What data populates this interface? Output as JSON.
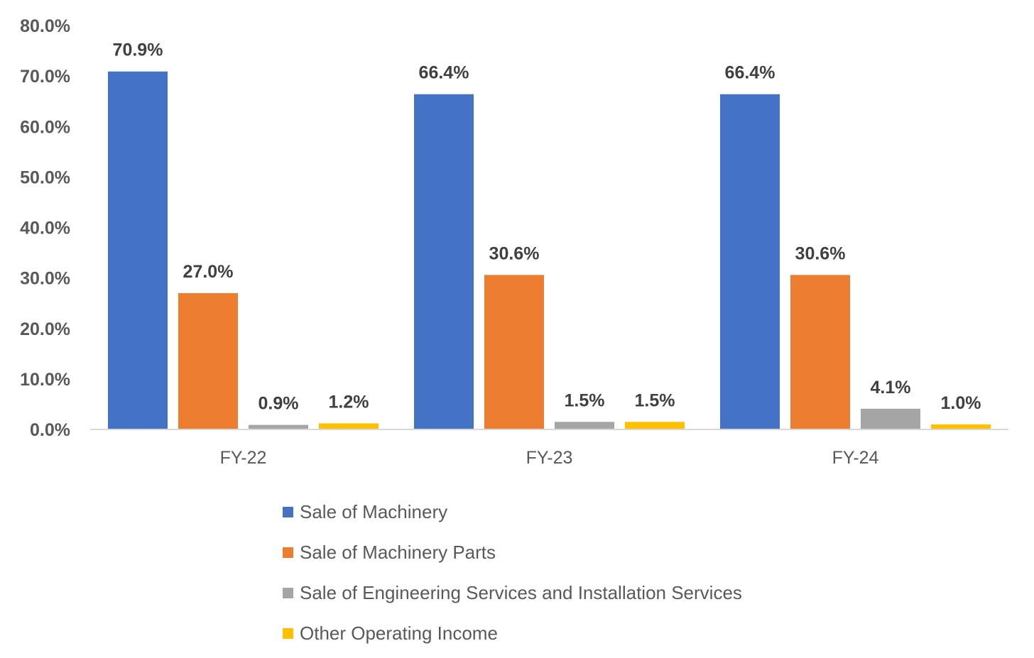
{
  "chart_data": {
    "type": "bar",
    "categories": [
      "FY-22",
      "FY-23",
      "FY-24"
    ],
    "series": [
      {
        "name": "Sale of Machinery",
        "color": "#4472C4",
        "values": [
          70.9,
          66.4,
          66.4
        ],
        "labels": [
          "70.9%",
          "66.4%",
          "66.4%"
        ]
      },
      {
        "name": "Sale of Machinery Parts",
        "color": "#ED7D31",
        "values": [
          27.0,
          30.6,
          30.6
        ],
        "labels": [
          "27.0%",
          "30.6%",
          "30.6%"
        ]
      },
      {
        "name": "Sale of Engineering Services and Installation Services",
        "color": "#A5A5A5",
        "values": [
          0.9,
          1.5,
          4.1
        ],
        "labels": [
          "0.9%",
          "1.5%",
          "4.1%"
        ]
      },
      {
        "name": "Other Operating Income",
        "color": "#FFC000",
        "values": [
          1.2,
          1.5,
          1.0
        ],
        "labels": [
          "1.2%",
          "1.5%",
          "1.0%"
        ]
      }
    ],
    "yticks": [
      "0.0%",
      "10.0%",
      "20.0%",
      "30.0%",
      "40.0%",
      "50.0%",
      "60.0%",
      "70.0%",
      "80.0%"
    ],
    "ylim": [
      0,
      80
    ],
    "grid": false,
    "legend_position": "bottom",
    "title": "",
    "xlabel": "",
    "ylabel": ""
  }
}
